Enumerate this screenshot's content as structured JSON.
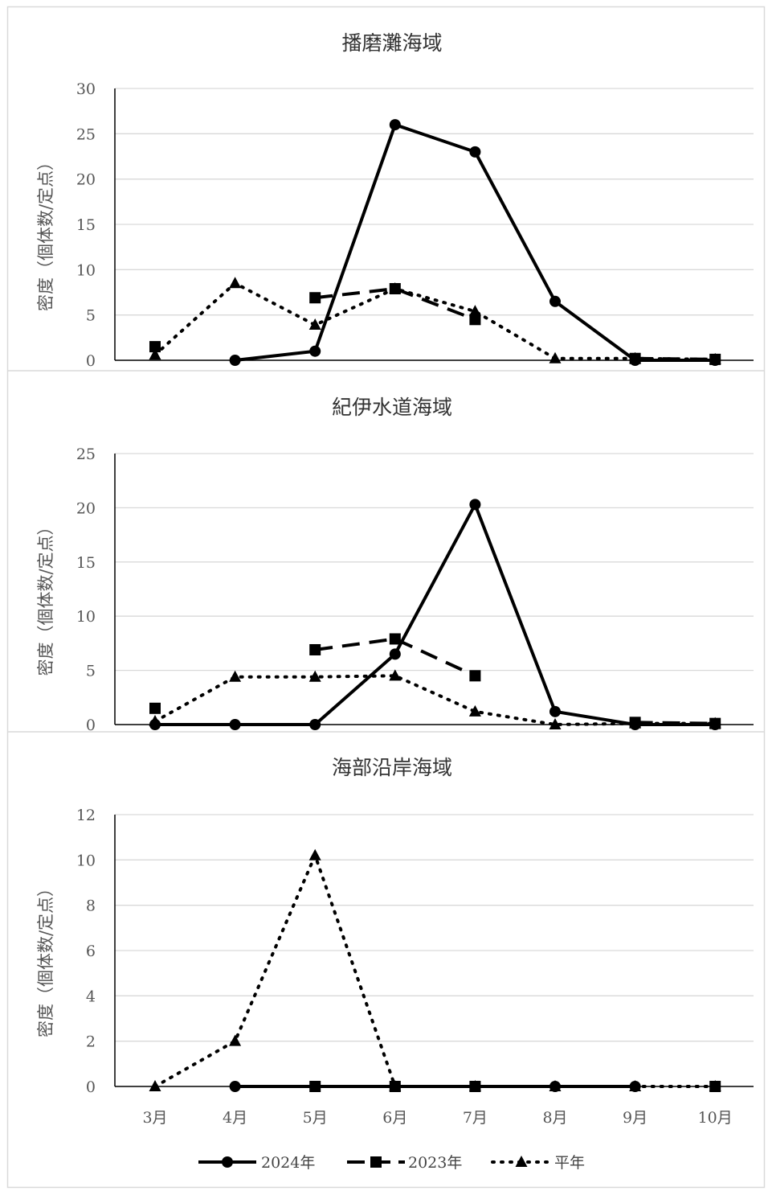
{
  "months": [
    "3月",
    "4月",
    "5月",
    "6月",
    "7月",
    "8月",
    "9月",
    "10月"
  ],
  "chart_data": [
    {
      "type": "line",
      "title": "播磨灘海域",
      "ylabel": "密度（個体数/定点）",
      "ylim": [
        0,
        30
      ],
      "yticks": [
        0,
        5,
        10,
        15,
        20,
        25,
        30
      ],
      "grid": true,
      "series": [
        {
          "name": "2024年",
          "style": "solid",
          "marker": "circle",
          "values": [
            null,
            0,
            1,
            26,
            23,
            6.5,
            0,
            0
          ]
        },
        {
          "name": "2023年",
          "style": "dashed",
          "marker": "square",
          "values": [
            1.5,
            null,
            6.9,
            7.9,
            4.5,
            null,
            0.2,
            0.1
          ]
        },
        {
          "name": "平年",
          "style": "dotted",
          "marker": "triangle",
          "values": [
            0.6,
            8.5,
            3.9,
            7.9,
            5.4,
            0.2,
            0.2,
            0.1
          ]
        }
      ]
    },
    {
      "type": "line",
      "title": "紀伊水道海域",
      "ylabel": "密度（個体数/定点）",
      "ylim": [
        0,
        25
      ],
      "yticks": [
        0,
        5,
        10,
        15,
        20,
        25
      ],
      "grid": true,
      "series": [
        {
          "name": "2024年",
          "style": "solid",
          "marker": "circle",
          "values": [
            0,
            0,
            0,
            6.5,
            20.3,
            1.2,
            0,
            0
          ]
        },
        {
          "name": "2023年",
          "style": "dashed",
          "marker": "square",
          "values": [
            1.5,
            null,
            6.9,
            7.9,
            4.5,
            null,
            0.2,
            0.1
          ]
        },
        {
          "name": "平年",
          "style": "dotted",
          "marker": "triangle",
          "values": [
            0.3,
            4.4,
            4.4,
            4.5,
            1.2,
            0,
            0.1,
            0.1
          ]
        }
      ]
    },
    {
      "type": "line",
      "title": "海部沿岸海域",
      "ylabel": "密度（個体数/定点）",
      "ylim": [
        0,
        12
      ],
      "yticks": [
        0,
        2,
        4,
        6,
        8,
        10,
        12
      ],
      "grid": true,
      "series": [
        {
          "name": "2024年",
          "style": "solid",
          "marker": "circle",
          "values": [
            null,
            0,
            0,
            0,
            0,
            0,
            0,
            null
          ]
        },
        {
          "name": "2023年",
          "style": "dashed",
          "marker": "square",
          "values": [
            null,
            null,
            0,
            0,
            0,
            null,
            null,
            0
          ]
        },
        {
          "name": "平年",
          "style": "dotted",
          "marker": "triangle",
          "values": [
            0,
            2,
            10.2,
            0,
            0,
            0,
            0,
            0
          ]
        }
      ]
    }
  ],
  "legend": {
    "placement": "bottom",
    "items": [
      {
        "label": "2024年",
        "style": "solid",
        "marker": "circle"
      },
      {
        "label": "2023年",
        "style": "dashed",
        "marker": "square"
      },
      {
        "label": "平年",
        "style": "dotted",
        "marker": "triangle"
      }
    ]
  },
  "colors": {
    "line": "#000000",
    "grid": "#d9d9d9",
    "axis": "#000000",
    "text": "#595959",
    "border": "#d9d9d9"
  }
}
